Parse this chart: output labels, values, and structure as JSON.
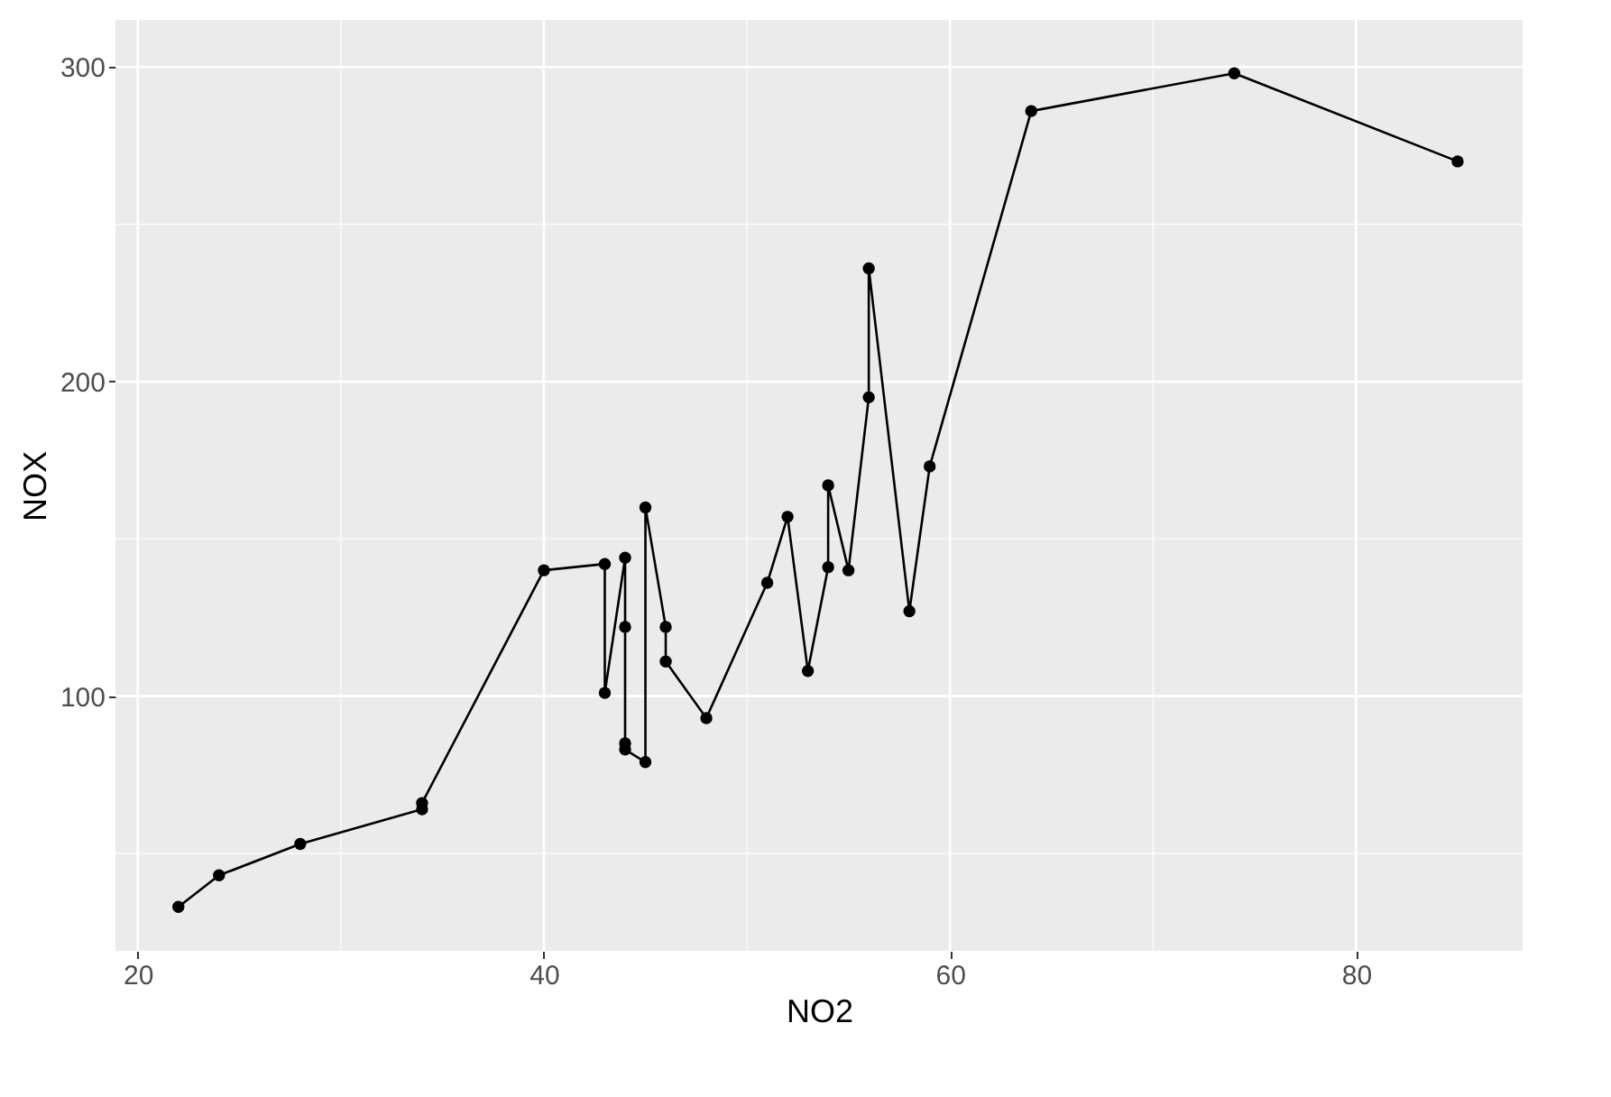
{
  "chart_data": {
    "type": "line",
    "xlabel": "NO2",
    "ylabel": "NOX",
    "x": [
      22,
      24,
      28,
      34,
      34,
      40,
      43,
      43,
      44,
      44,
      44,
      44,
      45,
      45,
      46,
      46,
      48,
      51,
      52,
      53,
      54,
      54,
      55,
      56,
      56,
      58,
      59,
      64,
      74,
      85
    ],
    "series": [
      {
        "color": "#000000",
        "values": [
          33,
          43,
          53,
          64,
          66,
          140,
          142,
          101,
          144,
          122,
          85,
          83,
          79,
          160,
          122,
          111,
          93,
          136,
          157,
          108,
          141,
          167,
          140,
          195,
          236,
          127,
          173,
          286,
          298,
          270
        ]
      }
    ],
    "xlim": [
      18.9,
      88.2
    ],
    "ylim": [
      19,
      315
    ],
    "xticks": [
      20,
      {
        "value": 30,
        "label": null
      },
      40,
      {
        "value": 50,
        "label": null
      },
      60,
      {
        "value": 70,
        "label": null
      },
      80
    ],
    "yticks": [
      {
        "value": 50,
        "label": null
      },
      100,
      {
        "value": 150,
        "label": null
      },
      200,
      {
        "value": 250,
        "label": null
      },
      300
    ],
    "grid": true,
    "marker": "circle",
    "line_style": "solid"
  }
}
